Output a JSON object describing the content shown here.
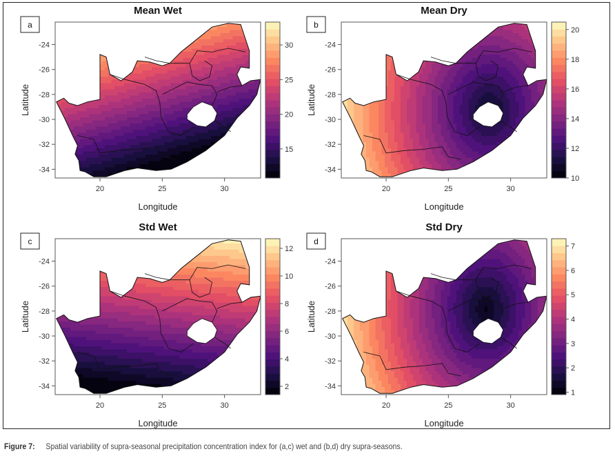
{
  "figure": {
    "caption_label": "Figure 7:",
    "caption_text": "Spatial variability of supra-seasonal precipitation concentration index for (a,c) wet and (b,d) dry supra-seasons."
  },
  "axes": {
    "xlabel": "Longitude",
    "ylabel": "Latitude",
    "x_ticks": [
      20,
      25,
      30
    ],
    "y_ticks": [
      -24,
      -26,
      -28,
      -30,
      -32,
      -34
    ],
    "xlim": [
      16.4,
      32.9
    ],
    "ylim": [
      -34.7,
      -22.2
    ]
  },
  "colormap": [
    "#000004",
    "#1c1044",
    "#4f127b",
    "#812581",
    "#b5367a",
    "#e55064",
    "#fb8761",
    "#fec287",
    "#fcfdbf"
  ],
  "chart_data": [
    {
      "type": "heatmap",
      "panel_label": "a",
      "title": "Mean Wet",
      "colorbar_range": [
        10.8,
        33.3
      ],
      "colorbar_ticks": [
        15,
        20,
        25,
        30
      ]
    },
    {
      "type": "heatmap",
      "panel_label": "b",
      "title": "Mean Dry",
      "colorbar_range": [
        10,
        20.5
      ],
      "colorbar_ticks": [
        10,
        12,
        14,
        16,
        18,
        20
      ]
    },
    {
      "type": "heatmap",
      "panel_label": "c",
      "title": "Std Wet",
      "colorbar_range": [
        1.4,
        12.7
      ],
      "colorbar_ticks": [
        2,
        4,
        6,
        8,
        10,
        12
      ]
    },
    {
      "type": "heatmap",
      "panel_label": "d",
      "title": "Std Dry",
      "colorbar_range": [
        0.9,
        7.3
      ],
      "colorbar_ticks": [
        1,
        2,
        3,
        4,
        5,
        6,
        7
      ]
    }
  ]
}
